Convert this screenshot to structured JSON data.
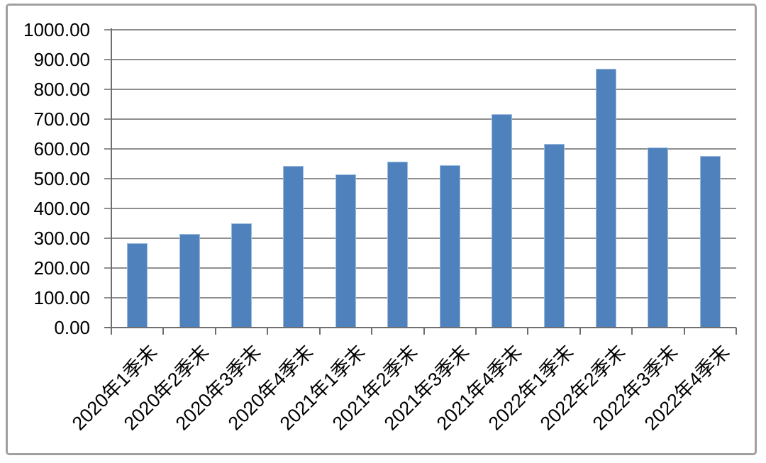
{
  "chart_data": {
    "type": "bar",
    "title": "",
    "xlabel": "",
    "ylabel": "",
    "categories": [
      "2020年1季末",
      "2020年2季末",
      "2020年3季末",
      "2020年4季末",
      "2021年1季末",
      "2021年2季末",
      "2021年3季末",
      "2021年4季末",
      "2022年1季末",
      "2022年2季末",
      "2022年3季末",
      "2022年4季末"
    ],
    "values": [
      283,
      315,
      351,
      542,
      514,
      557,
      546,
      716,
      617,
      869,
      604,
      576
    ],
    "ylim": [
      0,
      1000
    ],
    "ytick_step": 100,
    "ytick_labels": [
      "0.00",
      "100.00",
      "200.00",
      "300.00",
      "400.00",
      "500.00",
      "600.00",
      "700.00",
      "800.00",
      "900.00",
      "1000.00"
    ],
    "grid": true,
    "legend_position": "none",
    "bar_color": "#4f81bd",
    "bar_border_color": "#9dbcdf",
    "gridline_color": "#8e8e8e",
    "axis_color": "#6f6f6f",
    "frame_border_color": "#a0a0a0",
    "background_color": "#ffffff",
    "text_color": "#000000"
  }
}
